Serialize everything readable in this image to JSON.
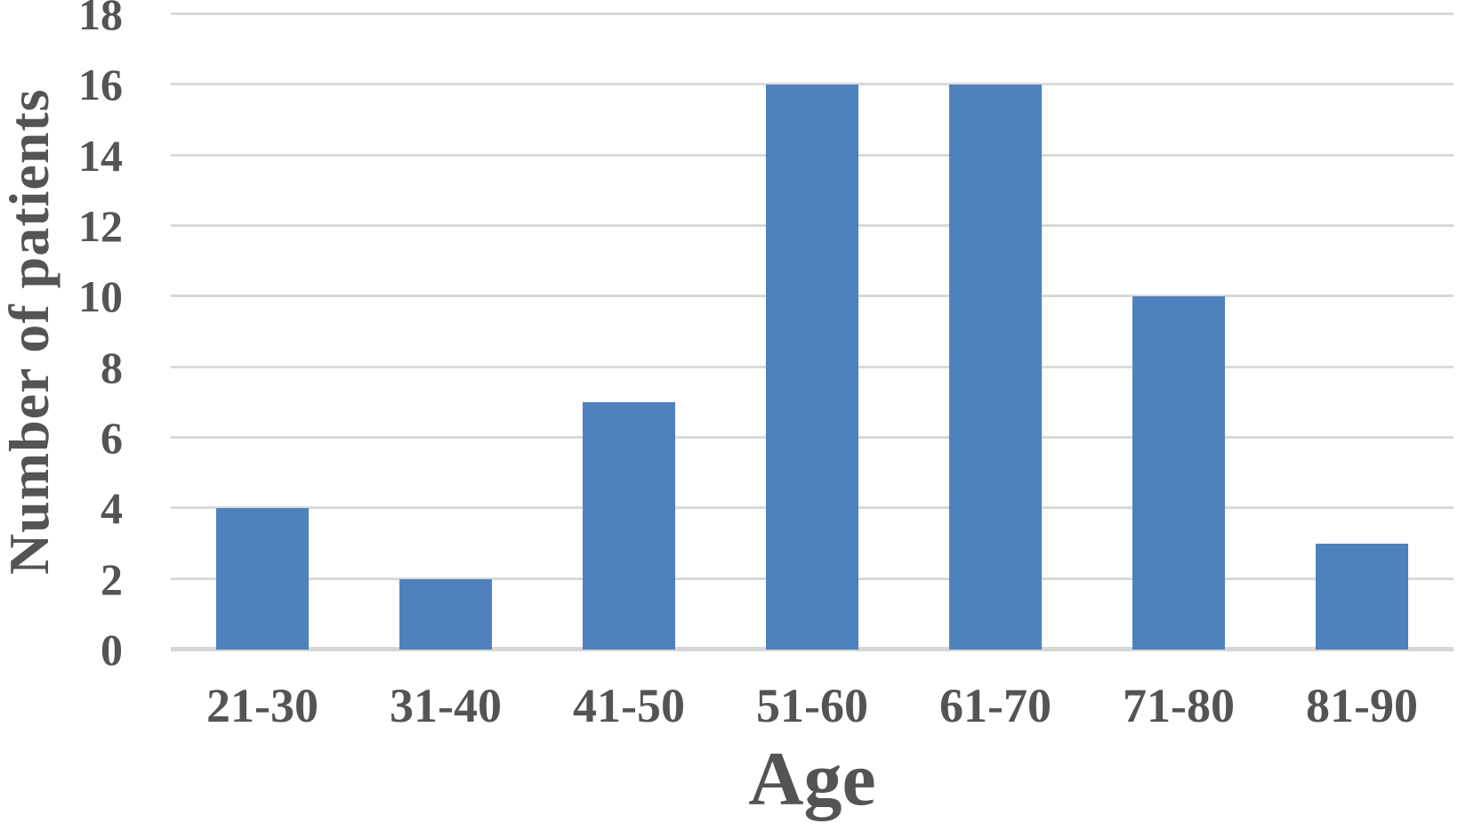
{
  "chart_data": {
    "type": "bar",
    "title": "",
    "categories": [
      "21-30",
      "31-40",
      "41-50",
      "51-60",
      "61-70",
      "71-80",
      "81-90"
    ],
    "values": [
      4,
      2,
      7,
      16,
      16,
      10,
      3
    ],
    "xlabel": "Age",
    "ylabel": "Number of patients",
    "ylim": [
      0,
      18
    ],
    "yticks": [
      0,
      2,
      4,
      6,
      8,
      10,
      12,
      14,
      16,
      18
    ],
    "grid": "horizontal",
    "legend": "none",
    "bar_color": "#4f81bd",
    "gridline_color": "#d9d9d9",
    "axis_line_color": "#d6d6d6",
    "text_color": "#545454",
    "background_color": "#ffffff"
  }
}
